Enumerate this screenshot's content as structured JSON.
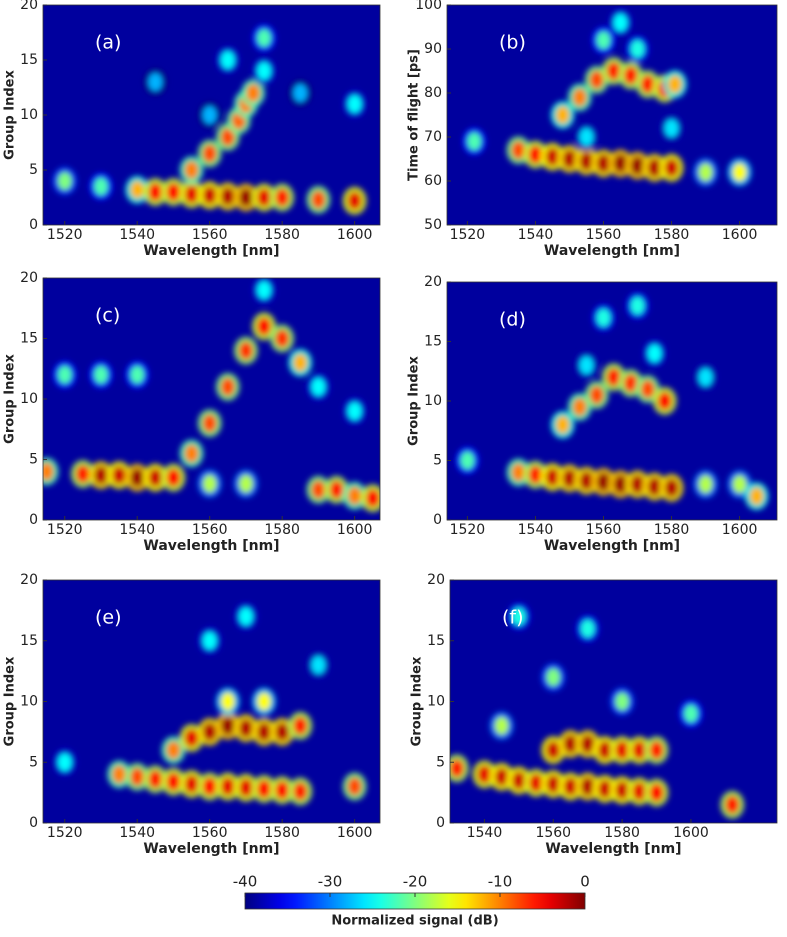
{
  "chart_data": [
    {
      "type": "heatmap",
      "annotation": "(a)",
      "xlabel": "Wavelength [nm]",
      "ylabel": "Group Index",
      "xlim": [
        1514,
        1607
      ],
      "ylim": [
        0,
        20
      ],
      "xticks": [
        1520,
        1540,
        1560,
        1580,
        1600
      ],
      "yticks": [
        0,
        5,
        10,
        15,
        20
      ],
      "x": [
        1520,
        1530,
        1540,
        1545,
        1550,
        1555,
        1560,
        1565,
        1570,
        1575,
        1580,
        1590,
        1600,
        1555,
        1560,
        1565,
        1568,
        1570,
        1572,
        1575,
        1565,
        1575,
        1585,
        1600,
        1545,
        1560
      ],
      "y": [
        4,
        3.5,
        3.2,
        3,
        3,
        2.8,
        2.7,
        2.6,
        2.5,
        2.5,
        2.5,
        2.3,
        2.2,
        5,
        6.5,
        8,
        9.5,
        11,
        12,
        17,
        15,
        14,
        12,
        11,
        13,
        10
      ],
      "values": [
        -20,
        -22,
        -12,
        -5,
        -5,
        -4,
        -3,
        -2,
        -1,
        -4,
        -6,
        -8,
        -4,
        -10,
        -8,
        -8,
        -9,
        -10,
        -10,
        -22,
        -25,
        -25,
        -28,
        -25,
        -28,
        -28
      ]
    },
    {
      "type": "heatmap",
      "annotation": "(b)",
      "xlabel": "Wavelength [nm]",
      "ylabel": "Time of flight [ps]",
      "xlim": [
        1514,
        1611
      ],
      "ylim": [
        50,
        100
      ],
      "xticks": [
        1520,
        1540,
        1560,
        1580,
        1600
      ],
      "yticks": [
        50,
        60,
        70,
        80,
        90,
        100
      ],
      "x": [
        1522,
        1535,
        1540,
        1545,
        1550,
        1555,
        1560,
        1565,
        1570,
        1575,
        1580,
        1590,
        1600,
        1548,
        1553,
        1558,
        1563,
        1568,
        1573,
        1578,
        1581,
        1560,
        1565,
        1570,
        1555,
        1580
      ],
      "y": [
        69,
        67,
        66,
        65.5,
        65,
        64.5,
        64,
        64,
        63.5,
        63,
        63,
        62,
        62,
        75,
        79,
        83,
        85,
        84,
        82,
        81,
        82,
        92,
        96,
        90,
        70,
        72
      ],
      "values": [
        -22,
        -8,
        -5,
        -3,
        -2,
        -2,
        -2,
        -1,
        -1,
        -2,
        -3,
        -18,
        -15,
        -12,
        -10,
        -8,
        -6,
        -6,
        -6,
        -5,
        -12,
        -22,
        -25,
        -24,
        -26,
        -26
      ]
    },
    {
      "type": "heatmap",
      "annotation": "(c)",
      "xlabel": "Wavelength [nm]",
      "ylabel": "Group Index",
      "xlim": [
        1514,
        1607
      ],
      "ylim": [
        0,
        20
      ],
      "xticks": [
        1520,
        1540,
        1560,
        1580,
        1600
      ],
      "yticks": [
        0,
        5,
        10,
        15,
        20
      ],
      "x": [
        1515,
        1525,
        1530,
        1535,
        1540,
        1545,
        1550,
        1560,
        1570,
        1590,
        1595,
        1600,
        1605,
        1555,
        1560,
        1565,
        1570,
        1575,
        1580,
        1585,
        1520,
        1530,
        1540,
        1590,
        1600,
        1575
      ],
      "y": [
        4,
        3.8,
        3.7,
        3.7,
        3.5,
        3.5,
        3.5,
        3,
        3,
        2.5,
        2.5,
        2,
        1.8,
        5.5,
        8,
        11,
        14,
        16,
        15,
        13,
        12,
        12,
        12,
        11,
        9,
        19
      ],
      "values": [
        -10,
        -6,
        -2,
        -3,
        -1,
        -3,
        -5,
        -18,
        -18,
        -8,
        -6,
        -10,
        -5,
        -10,
        -8,
        -8,
        -7,
        -5,
        -7,
        -12,
        -22,
        -22,
        -22,
        -25,
        -25,
        -25
      ]
    },
    {
      "type": "heatmap",
      "annotation": "(d)",
      "xlabel": "Wavelength [nm]",
      "ylabel": "Group Index",
      "xlim": [
        1514,
        1611
      ],
      "ylim": [
        0,
        20
      ],
      "xticks": [
        1520,
        1540,
        1560,
        1580,
        1600
      ],
      "yticks": [
        0,
        5,
        10,
        15,
        20
      ],
      "x": [
        1520,
        1535,
        1540,
        1545,
        1550,
        1555,
        1560,
        1565,
        1570,
        1575,
        1580,
        1590,
        1600,
        1605,
        1548,
        1553,
        1558,
        1563,
        1568,
        1573,
        1578,
        1560,
        1570,
        1575,
        1555,
        1590
      ],
      "y": [
        5,
        4,
        3.8,
        3.6,
        3.5,
        3.3,
        3.2,
        3,
        3,
        2.8,
        2.7,
        3,
        3,
        2,
        8,
        9.5,
        10.5,
        12,
        11.5,
        11,
        10,
        17,
        18,
        14,
        13,
        12
      ],
      "values": [
        -22,
        -10,
        -6,
        -3,
        -2,
        -2,
        -1,
        -1,
        -2,
        -2,
        -2,
        -18,
        -18,
        -12,
        -12,
        -10,
        -8,
        -6,
        -7,
        -8,
        -5,
        -24,
        -24,
        -25,
        -26,
        -26
      ]
    },
    {
      "type": "heatmap",
      "annotation": "(e)",
      "xlabel": "Wavelength [nm]",
      "ylabel": "Group Index",
      "xlim": [
        1514,
        1607
      ],
      "ylim": [
        0,
        20
      ],
      "xticks": [
        1520,
        1540,
        1560,
        1580,
        1600
      ],
      "yticks": [
        0,
        5,
        10,
        15,
        20
      ],
      "x": [
        1520,
        1535,
        1540,
        1545,
        1550,
        1555,
        1560,
        1565,
        1570,
        1575,
        1580,
        1585,
        1600,
        1550,
        1555,
        1560,
        1565,
        1570,
        1575,
        1580,
        1585,
        1565,
        1575,
        1560,
        1570,
        1590
      ],
      "y": [
        5,
        4,
        3.8,
        3.6,
        3.4,
        3.2,
        3,
        3,
        2.9,
        2.8,
        2.7,
        2.6,
        3,
        6,
        7,
        7.5,
        8,
        7.8,
        7.5,
        7.5,
        8,
        10,
        10,
        15,
        17,
        13
      ],
      "values": [
        -25,
        -10,
        -8,
        -6,
        -5,
        -4,
        -5,
        -4,
        -4,
        -5,
        -5,
        -6,
        -8,
        -10,
        -4,
        -2,
        -1,
        -2,
        -2,
        -2,
        -6,
        -15,
        -15,
        -25,
        -25,
        -26
      ]
    },
    {
      "type": "heatmap",
      "annotation": "(f)",
      "xlabel": "Wavelength [nm]",
      "ylabel": "Group Index",
      "xlim": [
        1530,
        1625
      ],
      "ylim": [
        0,
        20
      ],
      "xticks": [
        1540,
        1560,
        1580,
        1600
      ],
      "yticks": [
        0,
        5,
        10,
        15,
        20
      ],
      "x": [
        1532,
        1540,
        1545,
        1550,
        1555,
        1560,
        1565,
        1570,
        1575,
        1580,
        1585,
        1590,
        1560,
        1565,
        1570,
        1575,
        1580,
        1585,
        1590,
        1612,
        1545,
        1560,
        1580,
        1600,
        1550,
        1570
      ],
      "y": [
        4.5,
        4,
        3.8,
        3.5,
        3.3,
        3.2,
        3,
        3,
        2.8,
        2.7,
        2.6,
        2.5,
        6,
        6.5,
        6.5,
        6,
        6,
        6,
        6,
        1.5,
        8,
        12,
        10,
        9,
        17,
        16
      ],
      "values": [
        -6,
        -4,
        -3,
        -3,
        -4,
        -3,
        -3,
        -2,
        -3,
        -3,
        -4,
        -5,
        -3,
        -2,
        -2,
        -3,
        -4,
        -4,
        -6,
        -6,
        -18,
        -20,
        -20,
        -22,
        -24,
        -24
      ]
    },
    {
      "type": "colorbar",
      "label": "Normalized signal (dB)",
      "xlim": [
        -40,
        0
      ],
      "xticks": [
        -40,
        -30,
        -20,
        -10,
        0
      ]
    }
  ]
}
